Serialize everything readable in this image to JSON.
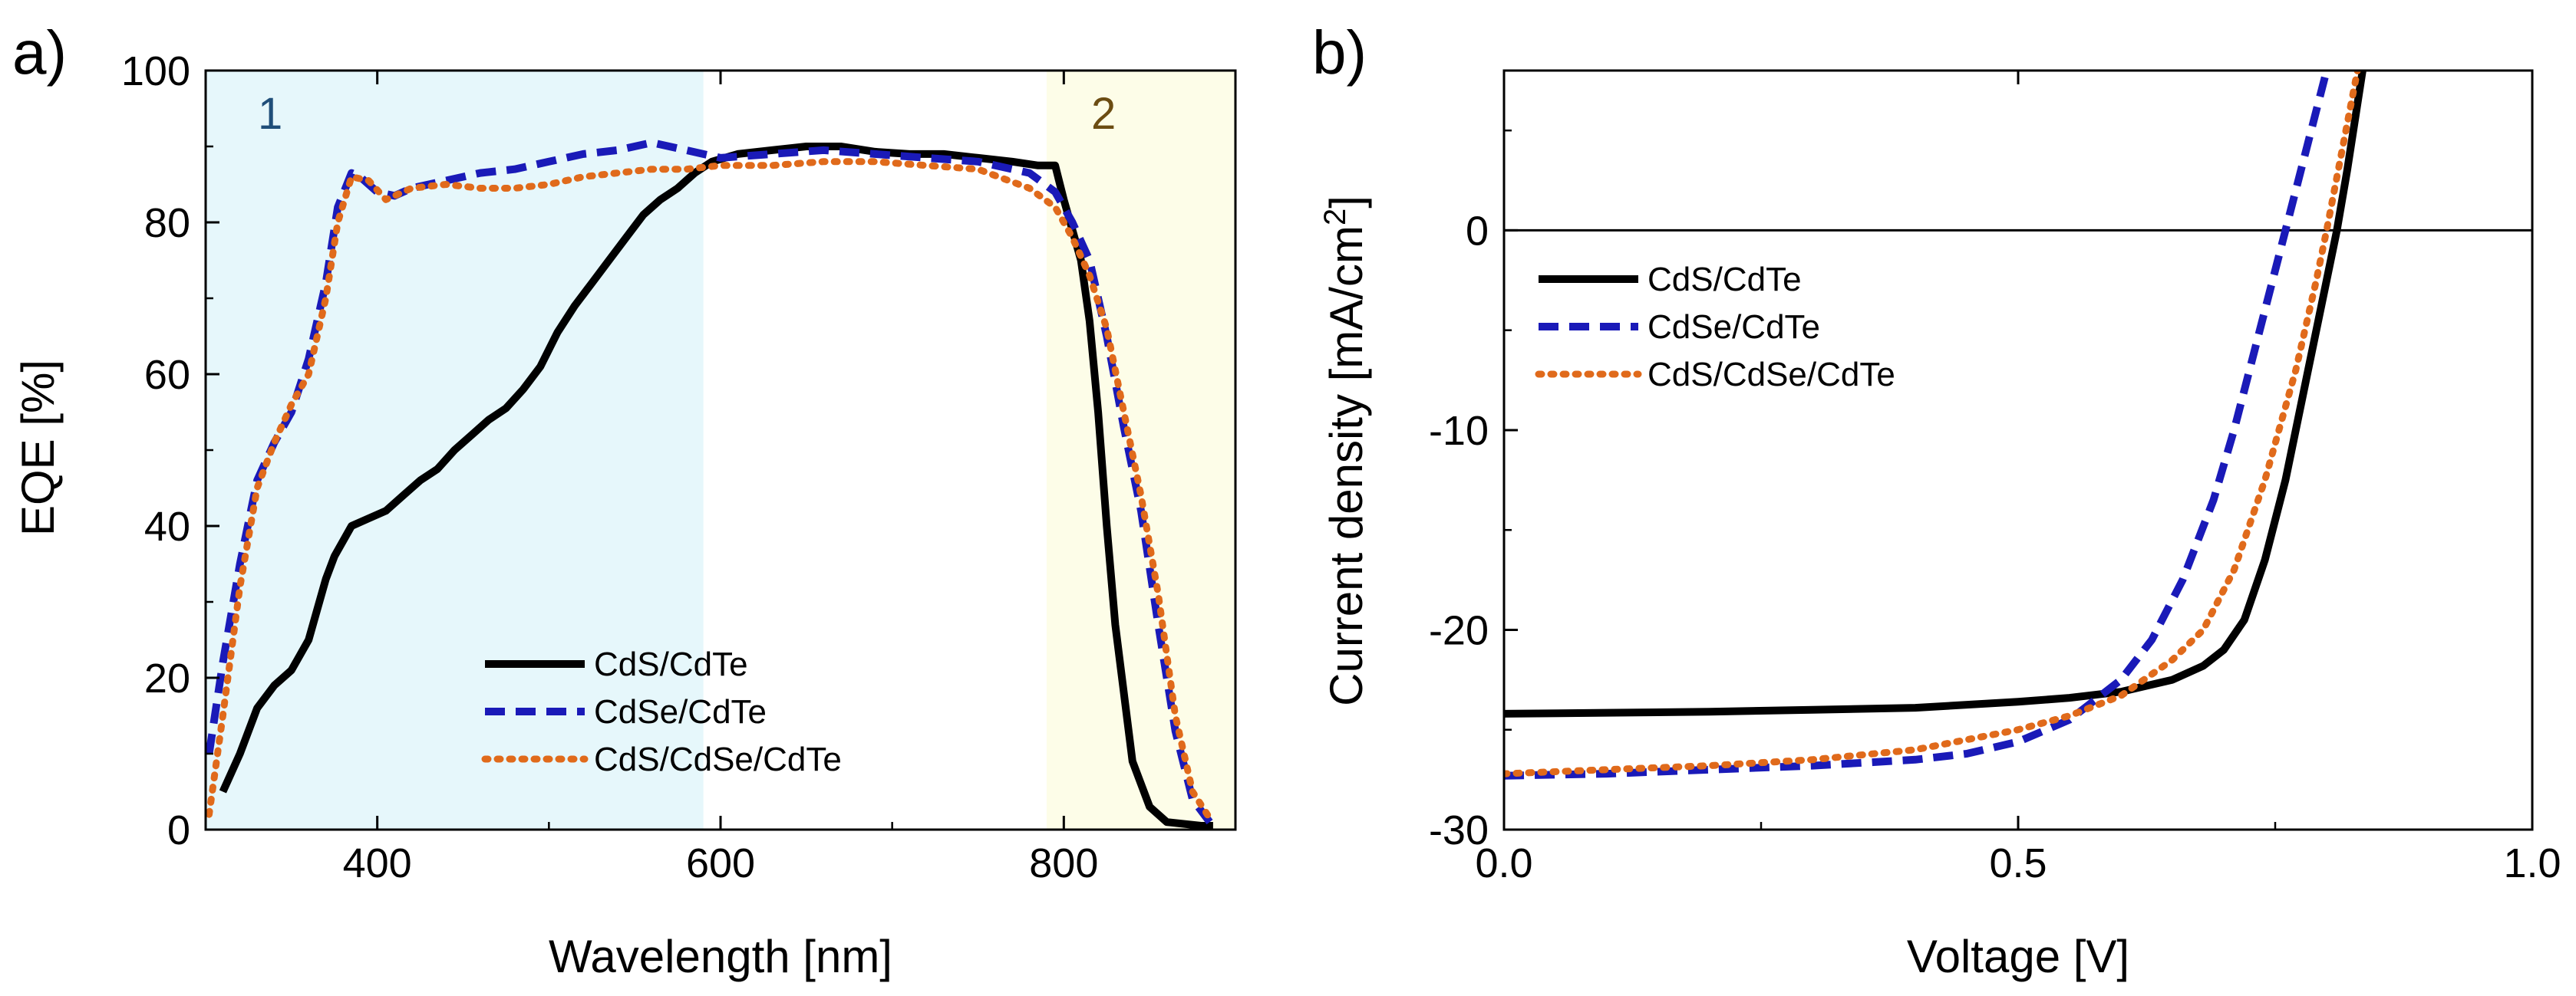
{
  "chart_data": [
    {
      "panel": "a)",
      "type": "line",
      "xlabel": "Wavelength [nm]",
      "ylabel": "EQE [%]",
      "xlim": [
        300,
        900
      ],
      "ylim": [
        0,
        100
      ],
      "x_ticks": [
        400,
        600,
        800
      ],
      "y_ticks": [
        0,
        20,
        40,
        60,
        80,
        100
      ],
      "grid": false,
      "legend_position": "bottom-center",
      "regions": [
        {
          "label": "1",
          "x_from": 300,
          "x_to": 590,
          "color": "#e6f7fb",
          "label_color": "#1f4e79"
        },
        {
          "label": "2",
          "x_from": 790,
          "x_to": 900,
          "color": "#fdfde8",
          "label_color": "#6b4c12"
        }
      ],
      "series": [
        {
          "name": "CdS/CdTe",
          "color": "#000000",
          "dash": "solid",
          "points": [
            [
              310,
              5
            ],
            [
              320,
              10
            ],
            [
              330,
              16
            ],
            [
              340,
              19
            ],
            [
              350,
              21
            ],
            [
              360,
              25
            ],
            [
              365,
              29
            ],
            [
              370,
              33
            ],
            [
              375,
              36
            ],
            [
              385,
              40
            ],
            [
              395,
              41
            ],
            [
              405,
              42
            ],
            [
              415,
              44
            ],
            [
              425,
              46
            ],
            [
              435,
              47.5
            ],
            [
              445,
              50
            ],
            [
              455,
              52
            ],
            [
              465,
              54
            ],
            [
              475,
              55.5
            ],
            [
              485,
              58
            ],
            [
              495,
              61
            ],
            [
              505,
              65.5
            ],
            [
              515,
              69
            ],
            [
              525,
              72
            ],
            [
              535,
              75
            ],
            [
              545,
              78
            ],
            [
              555,
              81
            ],
            [
              565,
              83
            ],
            [
              575,
              84.5
            ],
            [
              585,
              86.5
            ],
            [
              595,
              88
            ],
            [
              610,
              89
            ],
            [
              630,
              89.5
            ],
            [
              650,
              90
            ],
            [
              670,
              90
            ],
            [
              690,
              89.3
            ],
            [
              710,
              89
            ],
            [
              730,
              89
            ],
            [
              750,
              88.5
            ],
            [
              770,
              88
            ],
            [
              785,
              87.5
            ],
            [
              795,
              87.5
            ],
            [
              800,
              83
            ],
            [
              810,
              75
            ],
            [
              815,
              67
            ],
            [
              820,
              55
            ],
            [
              825,
              40
            ],
            [
              830,
              27
            ],
            [
              840,
              9
            ],
            [
              850,
              3
            ],
            [
              860,
              1
            ],
            [
              880,
              0.5
            ],
            [
              887,
              0.5
            ]
          ]
        },
        {
          "name": "CdSe/CdTe",
          "color": "#1a1ab8",
          "dash": "dashed",
          "points": [
            [
              302,
              10
            ],
            [
              310,
              22
            ],
            [
              320,
              35
            ],
            [
              330,
              46
            ],
            [
              340,
              51
            ],
            [
              350,
              55
            ],
            [
              360,
              62
            ],
            [
              370,
              72
            ],
            [
              377,
              82
            ],
            [
              385,
              86.5
            ],
            [
              390,
              86
            ],
            [
              400,
              84
            ],
            [
              410,
              83.5
            ],
            [
              420,
              84.5
            ],
            [
              440,
              85.5
            ],
            [
              460,
              86.5
            ],
            [
              480,
              87
            ],
            [
              500,
              88
            ],
            [
              520,
              89
            ],
            [
              540,
              89.5
            ],
            [
              560,
              90.5
            ],
            [
              580,
              89.5
            ],
            [
              600,
              88.5
            ],
            [
              630,
              89
            ],
            [
              660,
              89.5
            ],
            [
              690,
              89
            ],
            [
              720,
              88.5
            ],
            [
              750,
              88
            ],
            [
              780,
              86.5
            ],
            [
              795,
              84
            ],
            [
              805,
              80
            ],
            [
              815,
              75
            ],
            [
              825,
              65
            ],
            [
              835,
              53
            ],
            [
              845,
              42
            ],
            [
              855,
              27
            ],
            [
              865,
              13
            ],
            [
              875,
              4
            ],
            [
              885,
              1
            ]
          ]
        },
        {
          "name": "CdS/CdSe/CdTe",
          "color": "#e06a1b",
          "dash": "dotted",
          "points": [
            [
              302,
              2
            ],
            [
              310,
              15
            ],
            [
              320,
              32
            ],
            [
              330,
              45
            ],
            [
              340,
              51
            ],
            [
              350,
              56
            ],
            [
              360,
              60
            ],
            [
              370,
              70
            ],
            [
              377,
              80
            ],
            [
              385,
              86
            ],
            [
              395,
              85.5
            ],
            [
              405,
              83
            ],
            [
              420,
              84.5
            ],
            [
              440,
              85
            ],
            [
              460,
              84.5
            ],
            [
              480,
              84.5
            ],
            [
              500,
              85
            ],
            [
              520,
              86
            ],
            [
              540,
              86.5
            ],
            [
              560,
              87
            ],
            [
              580,
              87
            ],
            [
              600,
              87.5
            ],
            [
              630,
              87.5
            ],
            [
              660,
              88
            ],
            [
              690,
              88
            ],
            [
              720,
              87.5
            ],
            [
              750,
              87
            ],
            [
              780,
              84.5
            ],
            [
              795,
              82
            ],
            [
              805,
              78
            ],
            [
              815,
              73
            ],
            [
              825,
              66
            ],
            [
              835,
              55
            ],
            [
              845,
              44
            ],
            [
              855,
              31
            ],
            [
              865,
              15
            ],
            [
              875,
              5
            ],
            [
              885,
              1.5
            ]
          ]
        }
      ]
    },
    {
      "panel": "b)",
      "type": "line",
      "xlabel": "Voltage [V]",
      "ylabel": "Current density [mA/cm",
      "ylabel_superscript": "2",
      "ylabel_suffix": "]",
      "xlim": [
        0,
        1
      ],
      "ylim": [
        -30,
        8
      ],
      "x_ticks": [
        0,
        0.5,
        1
      ],
      "x_tick_labels": [
        "0.0",
        "0.5",
        "1.0"
      ],
      "y_ticks": [
        -30,
        -20,
        -10,
        0
      ],
      "y_tick_labels": [
        "-30",
        "-20",
        "-10",
        "0"
      ],
      "zero_line": 0,
      "grid": false,
      "legend_position": "top-left",
      "series": [
        {
          "name": "CdS/CdTe",
          "color": "#000000",
          "dash": "solid",
          "points": [
            [
              0,
              -24.2
            ],
            [
              0.1,
              -24.15
            ],
            [
              0.2,
              -24.1
            ],
            [
              0.3,
              -24.0
            ],
            [
              0.4,
              -23.9
            ],
            [
              0.5,
              -23.6
            ],
            [
              0.55,
              -23.4
            ],
            [
              0.6,
              -23.1
            ],
            [
              0.65,
              -22.5
            ],
            [
              0.68,
              -21.8
            ],
            [
              0.7,
              -21.0
            ],
            [
              0.72,
              -19.5
            ],
            [
              0.74,
              -16.5
            ],
            [
              0.76,
              -12.5
            ],
            [
              0.78,
              -7.5
            ],
            [
              0.8,
              -2.5
            ],
            [
              0.81,
              0
            ],
            [
              0.82,
              3
            ],
            [
              0.835,
              8
            ]
          ]
        },
        {
          "name": "CdSe/CdTe",
          "color": "#1a1ab8",
          "dash": "dashed",
          "points": [
            [
              0,
              -27.3
            ],
            [
              0.1,
              -27.2
            ],
            [
              0.2,
              -27.0
            ],
            [
              0.3,
              -26.8
            ],
            [
              0.4,
              -26.5
            ],
            [
              0.45,
              -26.2
            ],
            [
              0.5,
              -25.6
            ],
            [
              0.55,
              -24.5
            ],
            [
              0.6,
              -22.5
            ],
            [
              0.63,
              -20.5
            ],
            [
              0.66,
              -17.5
            ],
            [
              0.69,
              -13.5
            ],
            [
              0.71,
              -10
            ],
            [
              0.73,
              -6
            ],
            [
              0.75,
              -2
            ],
            [
              0.76,
              0
            ],
            [
              0.78,
              4
            ],
            [
              0.8,
              8
            ]
          ]
        },
        {
          "name": "CdS/CdSe/CdTe",
          "color": "#e06a1b",
          "dash": "dotted",
          "points": [
            [
              0,
              -27.2
            ],
            [
              0.1,
              -27.0
            ],
            [
              0.2,
              -26.8
            ],
            [
              0.3,
              -26.5
            ],
            [
              0.4,
              -26.0
            ],
            [
              0.5,
              -25.0
            ],
            [
              0.55,
              -24.3
            ],
            [
              0.6,
              -23.3
            ],
            [
              0.65,
              -21.5
            ],
            [
              0.68,
              -20
            ],
            [
              0.71,
              -17
            ],
            [
              0.74,
              -12.5
            ],
            [
              0.77,
              -7
            ],
            [
              0.79,
              -2.5
            ],
            [
              0.8,
              0
            ],
            [
              0.815,
              4
            ],
            [
              0.83,
              8
            ]
          ]
        }
      ]
    }
  ]
}
